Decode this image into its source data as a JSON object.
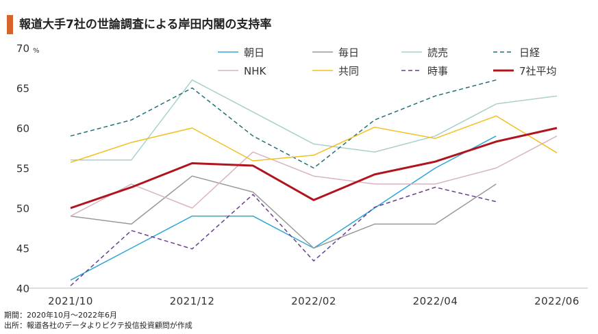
{
  "title": "報道大手7社の世論調査による岸田内閣の支持率",
  "notes": {
    "period": "期間：2020年10月～2022年6月",
    "source": "出所：報道各社のデータよりピクテ投信投資顧問が作成"
  },
  "chart_data": {
    "type": "line",
    "title": "報道大手7社の世論調査による岸田内閣の支持率",
    "xlabel": "",
    "ylabel": "",
    "y_unit": "%",
    "ylim": [
      40,
      70
    ],
    "yticks": [
      40,
      45,
      50,
      55,
      60,
      65,
      70
    ],
    "grid": false,
    "legend": "top",
    "x": [
      "2021/10",
      "2021/11",
      "2021/12",
      "2022/01",
      "2022/02",
      "2022/03",
      "2022/04",
      "2022/05",
      "2022/06"
    ],
    "xtick_labels": [
      "2021/10",
      "2021/12",
      "2022/02",
      "2022/04",
      "2022/06"
    ],
    "series": [
      {
        "name": "朝日",
        "color": "#2aa7d6",
        "style": "solid",
        "width": 1.5,
        "values": [
          41,
          45,
          49,
          49,
          45,
          50,
          55,
          59,
          null
        ]
      },
      {
        "name": "毎日",
        "color": "#999999",
        "style": "solid",
        "width": 1.5,
        "values": [
          49,
          48,
          54,
          52,
          45,
          48,
          48,
          53,
          null
        ]
      },
      {
        "name": "読売",
        "color": "#a9cfcc",
        "style": "solid",
        "width": 1.5,
        "values": [
          56,
          56,
          66,
          62,
          58,
          57,
          59,
          63,
          64
        ]
      },
      {
        "name": "日経",
        "color": "#1f6f78",
        "style": "dashed",
        "width": 1.5,
        "values": [
          59,
          61,
          65,
          59,
          55,
          61,
          64,
          66,
          null
        ]
      },
      {
        "name": "NHK",
        "color": "#d8b4c0",
        "style": "solid",
        "width": 1.5,
        "values": [
          49,
          53,
          50,
          57,
          54,
          53,
          53,
          55,
          59
        ]
      },
      {
        "name": "共同",
        "color": "#f2bf1f",
        "style": "solid",
        "width": 1.5,
        "values": [
          55.7,
          58.2,
          60,
          55.9,
          56.6,
          60.1,
          58.7,
          61.5,
          56.9
        ]
      },
      {
        "name": "時事",
        "color": "#6a3d8f",
        "style": "dashed",
        "width": 1.5,
        "values": [
          40.3,
          47.2,
          44.9,
          51.7,
          43.4,
          50.1,
          52.6,
          50.8,
          null
        ]
      },
      {
        "name": "7社平均",
        "color": "#b0141c",
        "style": "solid",
        "width": 3,
        "values": [
          50,
          52.6,
          55.6,
          55.3,
          51,
          54.2,
          55.8,
          58.3,
          60
        ]
      }
    ]
  }
}
